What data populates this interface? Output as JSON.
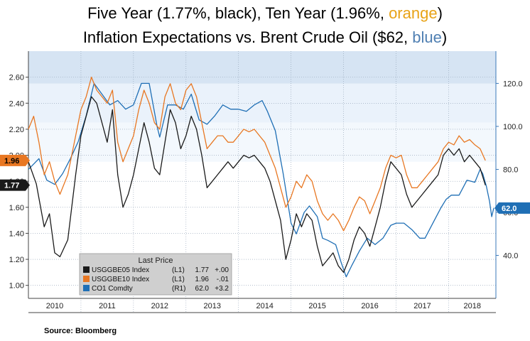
{
  "title": {
    "line1_prefix": "Five Year (1.77%, black), Ten Year (1.96%, ",
    "line1_highlight": "orange",
    "line1_suffix": ")",
    "line2_prefix": "Inflation Expectations  vs. Brent Crude Oil ($62, ",
    "line2_highlight": "blue",
    "line2_suffix": ")"
  },
  "source": "Source: Bloomberg",
  "colors": {
    "black_series": "#1a1a1a",
    "orange_series": "#e87722",
    "blue_series": "#1f6fb5",
    "band_dark": "#d6e4f3",
    "band_light": "#eaf2fb",
    "axis": "#3a78b8",
    "legend_bg": "#cfcfcf"
  },
  "chart_data": {
    "type": "line",
    "x_categories": [
      "2010",
      "2011",
      "2012",
      "2013",
      "2014",
      "2015",
      "2016",
      "2017",
      "2018"
    ],
    "x_range": [
      2010.0,
      2018.9
    ],
    "left_axis": {
      "ticks": [
        "1.00",
        "1.20",
        "1.40",
        "1.60",
        "1.80",
        "2.00",
        "2.20",
        "2.40",
        "2.60"
      ],
      "ylim": [
        0.9,
        2.8
      ]
    },
    "right_axis": {
      "ticks": [
        "40.0",
        "60.0",
        "80.0",
        "100.0",
        "120.0"
      ],
      "ylim": [
        20,
        135
      ]
    },
    "grid": true,
    "legend": {
      "title": "Last Price",
      "placement": "bottom-center",
      "entries": [
        {
          "ticker": "USGGBE05 Index",
          "axis": "(L1)",
          "last": "1.77",
          "change": "+.00"
        },
        {
          "ticker": "USGGBE10 Index",
          "axis": "(L1)",
          "last": "1.96",
          "change": "-.01"
        },
        {
          "ticker": "CO1 Comdty",
          "axis": "(R1)",
          "last": "62.0",
          "change": "+3.2"
        }
      ]
    },
    "last_value_labels": {
      "black": "1.77",
      "orange": "1.96",
      "blue": "62.0"
    },
    "series": [
      {
        "axis": "left",
        "points": [
          [
            2010.0,
            1.95
          ],
          [
            2010.15,
            1.78
          ],
          [
            2010.3,
            1.45
          ],
          [
            2010.4,
            1.55
          ],
          [
            2010.5,
            1.25
          ],
          [
            2010.6,
            1.22
          ],
          [
            2010.75,
            1.35
          ],
          [
            2010.9,
            1.85
          ],
          [
            2011.0,
            2.15
          ],
          [
            2011.1,
            2.3
          ],
          [
            2011.2,
            2.45
          ],
          [
            2011.3,
            2.4
          ],
          [
            2011.4,
            2.25
          ],
          [
            2011.5,
            2.1
          ],
          [
            2011.6,
            2.35
          ],
          [
            2011.7,
            1.85
          ],
          [
            2011.8,
            1.6
          ],
          [
            2011.9,
            1.7
          ],
          [
            2012.0,
            1.85
          ],
          [
            2012.1,
            2.05
          ],
          [
            2012.2,
            2.25
          ],
          [
            2012.3,
            2.1
          ],
          [
            2012.4,
            1.9
          ],
          [
            2012.5,
            1.85
          ],
          [
            2012.6,
            2.1
          ],
          [
            2012.7,
            2.35
          ],
          [
            2012.8,
            2.25
          ],
          [
            2012.9,
            2.05
          ],
          [
            2013.0,
            2.15
          ],
          [
            2013.1,
            2.3
          ],
          [
            2013.2,
            2.2
          ],
          [
            2013.3,
            2.0
          ],
          [
            2013.4,
            1.75
          ],
          [
            2013.5,
            1.8
          ],
          [
            2013.6,
            1.85
          ],
          [
            2013.7,
            1.9
          ],
          [
            2013.8,
            1.95
          ],
          [
            2013.9,
            1.9
          ],
          [
            2014.0,
            1.95
          ],
          [
            2014.1,
            2.0
          ],
          [
            2014.2,
            1.98
          ],
          [
            2014.3,
            2.0
          ],
          [
            2014.4,
            1.95
          ],
          [
            2014.5,
            1.9
          ],
          [
            2014.6,
            1.8
          ],
          [
            2014.7,
            1.65
          ],
          [
            2014.8,
            1.5
          ],
          [
            2014.9,
            1.2
          ],
          [
            2015.0,
            1.35
          ],
          [
            2015.1,
            1.55
          ],
          [
            2015.2,
            1.45
          ],
          [
            2015.3,
            1.55
          ],
          [
            2015.4,
            1.5
          ],
          [
            2015.5,
            1.3
          ],
          [
            2015.6,
            1.15
          ],
          [
            2015.7,
            1.2
          ],
          [
            2015.8,
            1.25
          ],
          [
            2015.9,
            1.15
          ],
          [
            2016.0,
            1.1
          ],
          [
            2016.1,
            1.2
          ],
          [
            2016.2,
            1.35
          ],
          [
            2016.3,
            1.45
          ],
          [
            2016.4,
            1.4
          ],
          [
            2016.5,
            1.3
          ],
          [
            2016.6,
            1.45
          ],
          [
            2016.7,
            1.6
          ],
          [
            2016.8,
            1.8
          ],
          [
            2016.9,
            1.95
          ],
          [
            2017.0,
            1.9
          ],
          [
            2017.1,
            1.85
          ],
          [
            2017.2,
            1.7
          ],
          [
            2017.3,
            1.6
          ],
          [
            2017.4,
            1.65
          ],
          [
            2017.5,
            1.7
          ],
          [
            2017.6,
            1.75
          ],
          [
            2017.7,
            1.8
          ],
          [
            2017.8,
            1.85
          ],
          [
            2017.9,
            2.0
          ],
          [
            2018.0,
            2.05
          ],
          [
            2018.1,
            2.0
          ],
          [
            2018.2,
            2.05
          ],
          [
            2018.3,
            1.95
          ],
          [
            2018.4,
            2.0
          ],
          [
            2018.5,
            1.95
          ],
          [
            2018.6,
            1.9
          ],
          [
            2018.7,
            1.77
          ]
        ]
      },
      {
        "axis": "left",
        "points": [
          [
            2010.0,
            2.2
          ],
          [
            2010.1,
            2.3
          ],
          [
            2010.2,
            2.1
          ],
          [
            2010.3,
            1.85
          ],
          [
            2010.4,
            1.95
          ],
          [
            2010.5,
            1.8
          ],
          [
            2010.6,
            1.7
          ],
          [
            2010.75,
            1.85
          ],
          [
            2010.9,
            2.15
          ],
          [
            2011.0,
            2.35
          ],
          [
            2011.1,
            2.45
          ],
          [
            2011.2,
            2.6
          ],
          [
            2011.3,
            2.5
          ],
          [
            2011.4,
            2.45
          ],
          [
            2011.5,
            2.4
          ],
          [
            2011.6,
            2.5
          ],
          [
            2011.7,
            2.1
          ],
          [
            2011.8,
            1.95
          ],
          [
            2011.9,
            2.05
          ],
          [
            2012.0,
            2.15
          ],
          [
            2012.1,
            2.35
          ],
          [
            2012.2,
            2.5
          ],
          [
            2012.3,
            2.4
          ],
          [
            2012.4,
            2.25
          ],
          [
            2012.5,
            2.2
          ],
          [
            2012.6,
            2.45
          ],
          [
            2012.7,
            2.55
          ],
          [
            2012.8,
            2.4
          ],
          [
            2012.9,
            2.35
          ],
          [
            2013.0,
            2.5
          ],
          [
            2013.1,
            2.55
          ],
          [
            2013.2,
            2.45
          ],
          [
            2013.3,
            2.25
          ],
          [
            2013.4,
            2.05
          ],
          [
            2013.5,
            2.1
          ],
          [
            2013.6,
            2.15
          ],
          [
            2013.7,
            2.15
          ],
          [
            2013.8,
            2.1
          ],
          [
            2013.9,
            2.1
          ],
          [
            2014.0,
            2.15
          ],
          [
            2014.1,
            2.2
          ],
          [
            2014.2,
            2.18
          ],
          [
            2014.3,
            2.2
          ],
          [
            2014.4,
            2.15
          ],
          [
            2014.5,
            2.1
          ],
          [
            2014.6,
            2.0
          ],
          [
            2014.7,
            1.9
          ],
          [
            2014.8,
            1.75
          ],
          [
            2014.9,
            1.6
          ],
          [
            2015.0,
            1.68
          ],
          [
            2015.1,
            1.8
          ],
          [
            2015.2,
            1.75
          ],
          [
            2015.3,
            1.85
          ],
          [
            2015.4,
            1.8
          ],
          [
            2015.5,
            1.65
          ],
          [
            2015.6,
            1.55
          ],
          [
            2015.7,
            1.5
          ],
          [
            2015.8,
            1.55
          ],
          [
            2015.9,
            1.5
          ],
          [
            2016.0,
            1.42
          ],
          [
            2016.1,
            1.5
          ],
          [
            2016.2,
            1.6
          ],
          [
            2016.3,
            1.68
          ],
          [
            2016.4,
            1.65
          ],
          [
            2016.5,
            1.55
          ],
          [
            2016.6,
            1.65
          ],
          [
            2016.7,
            1.75
          ],
          [
            2016.8,
            1.9
          ],
          [
            2016.9,
            2.0
          ],
          [
            2017.0,
            1.98
          ],
          [
            2017.1,
            2.0
          ],
          [
            2017.2,
            1.85
          ],
          [
            2017.3,
            1.75
          ],
          [
            2017.4,
            1.75
          ],
          [
            2017.5,
            1.8
          ],
          [
            2017.6,
            1.85
          ],
          [
            2017.7,
            1.9
          ],
          [
            2017.8,
            1.95
          ],
          [
            2017.9,
            2.05
          ],
          [
            2018.0,
            2.1
          ],
          [
            2018.1,
            2.08
          ],
          [
            2018.2,
            2.15
          ],
          [
            2018.3,
            2.1
          ],
          [
            2018.4,
            2.12
          ],
          [
            2018.5,
            2.08
          ],
          [
            2018.6,
            2.05
          ],
          [
            2018.7,
            1.96
          ]
        ]
      },
      {
        "axis": "right",
        "points": [
          [
            2010.0,
            80
          ],
          [
            2010.2,
            85
          ],
          [
            2010.35,
            75
          ],
          [
            2010.5,
            73
          ],
          [
            2010.65,
            78
          ],
          [
            2010.8,
            85
          ],
          [
            2010.95,
            93
          ],
          [
            2011.1,
            105
          ],
          [
            2011.25,
            120
          ],
          [
            2011.4,
            115
          ],
          [
            2011.55,
            110
          ],
          [
            2011.7,
            112
          ],
          [
            2011.85,
            108
          ],
          [
            2012.0,
            110
          ],
          [
            2012.15,
            120
          ],
          [
            2012.3,
            120
          ],
          [
            2012.45,
            100
          ],
          [
            2012.5,
            95
          ],
          [
            2012.65,
            110
          ],
          [
            2012.8,
            110
          ],
          [
            2012.95,
            108
          ],
          [
            2013.1,
            115
          ],
          [
            2013.25,
            103
          ],
          [
            2013.4,
            101
          ],
          [
            2013.55,
            105
          ],
          [
            2013.7,
            110
          ],
          [
            2013.85,
            108
          ],
          [
            2014.0,
            108
          ],
          [
            2014.15,
            107
          ],
          [
            2014.3,
            110
          ],
          [
            2014.45,
            112
          ],
          [
            2014.55,
            107
          ],
          [
            2014.7,
            98
          ],
          [
            2014.85,
            78
          ],
          [
            2015.0,
            55
          ],
          [
            2015.1,
            50
          ],
          [
            2015.25,
            60
          ],
          [
            2015.35,
            63
          ],
          [
            2015.5,
            58
          ],
          [
            2015.6,
            48
          ],
          [
            2015.7,
            47
          ],
          [
            2015.85,
            45
          ],
          [
            2015.95,
            37
          ],
          [
            2016.05,
            30
          ],
          [
            2016.15,
            35
          ],
          [
            2016.3,
            42
          ],
          [
            2016.45,
            48
          ],
          [
            2016.6,
            45
          ],
          [
            2016.75,
            48
          ],
          [
            2016.9,
            54
          ],
          [
            2017.0,
            55
          ],
          [
            2017.15,
            55
          ],
          [
            2017.3,
            52
          ],
          [
            2017.45,
            48
          ],
          [
            2017.55,
            48
          ],
          [
            2017.7,
            55
          ],
          [
            2017.85,
            62
          ],
          [
            2017.95,
            66
          ],
          [
            2018.05,
            68
          ],
          [
            2018.2,
            68
          ],
          [
            2018.35,
            75
          ],
          [
            2018.5,
            74
          ],
          [
            2018.6,
            80
          ],
          [
            2018.65,
            78
          ],
          [
            2018.72,
            72
          ],
          [
            2018.78,
            65
          ],
          [
            2018.82,
            58
          ],
          [
            2018.86,
            62
          ]
        ]
      }
    ]
  }
}
